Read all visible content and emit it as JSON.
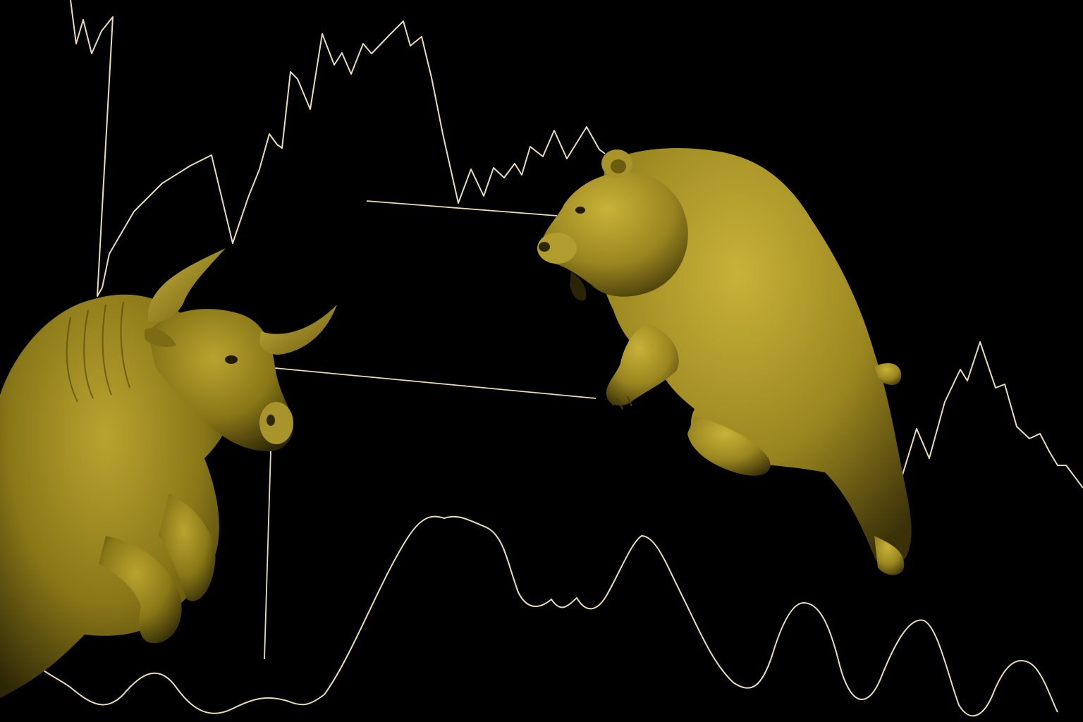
{
  "scene": {
    "description_free": true,
    "background_color": "#000000",
    "line_color": "#e9dcb8",
    "statue_color": "#9c8a1e",
    "statue_highlight": "#c2ae35",
    "statue_shadow": "#3e3408",
    "figures": [
      "bull",
      "bear"
    ]
  }
}
